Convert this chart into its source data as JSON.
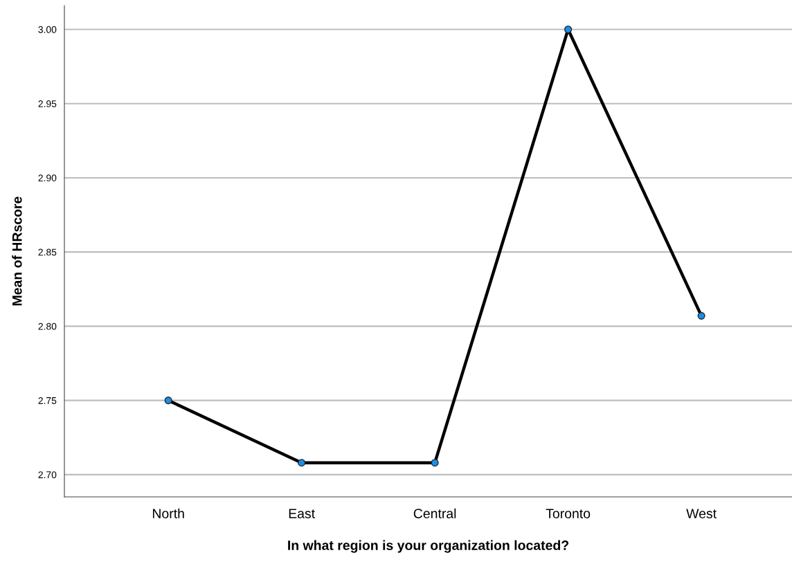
{
  "chart_data": {
    "type": "line",
    "xlabel": "In what region is your organization located?",
    "ylabel": "Mean of HRscore",
    "categories": [
      "North",
      "East",
      "Central",
      "Toronto",
      "West"
    ],
    "series": [
      {
        "color": "#000000",
        "values": [
          2.75,
          2.708,
          2.708,
          3.0,
          2.807
        ]
      }
    ],
    "marker": "circle",
    "line_style": "solid",
    "ylim": [
      2.685,
      3.016
    ],
    "yticks": [
      {
        "value": 2.7,
        "label": "2.70"
      },
      {
        "value": 2.75,
        "label": "2.75"
      },
      {
        "value": 2.8,
        "label": "2.80"
      },
      {
        "value": 2.85,
        "label": "2.85"
      },
      {
        "value": 2.9,
        "label": "2.90"
      },
      {
        "value": 2.95,
        "label": "2.95"
      },
      {
        "value": 3.0,
        "label": "3.00"
      }
    ],
    "grid": "y"
  }
}
